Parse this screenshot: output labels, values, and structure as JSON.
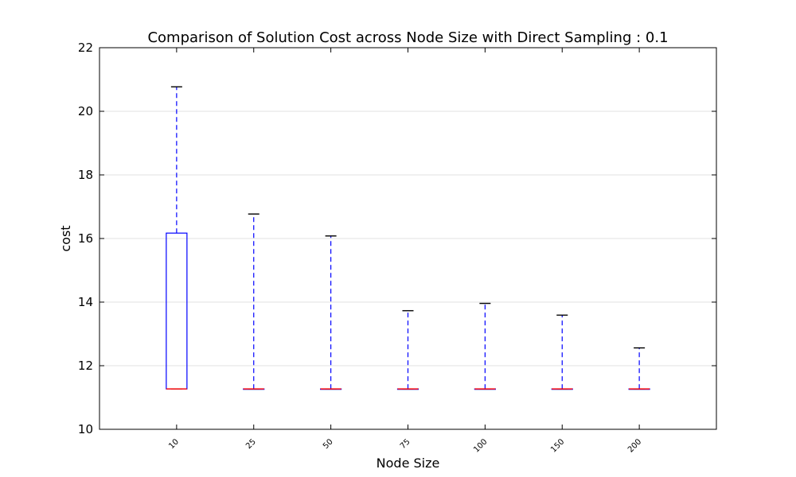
{
  "chart_data": {
    "type": "box",
    "title": "Comparison of Solution Cost across Node Size with Direct Sampling : 0.1",
    "xlabel": "Node Size",
    "ylabel": "cost",
    "ylim": [
      10,
      22
    ],
    "yticks": [
      "10",
      "12",
      "14",
      "16",
      "18",
      "20",
      "22"
    ],
    "grid": "horizontal",
    "categories": [
      "10",
      "25",
      "50",
      "75",
      "100",
      "150",
      "200"
    ],
    "boxes": [
      {
        "category": "10",
        "whislo": 11.27,
        "q1": 11.27,
        "median": 11.27,
        "q3": 16.17,
        "whishi": 20.77
      },
      {
        "category": "25",
        "whislo": 11.27,
        "q1": 11.27,
        "median": 11.27,
        "q3": 11.27,
        "whishi": 16.77
      },
      {
        "category": "50",
        "whislo": 11.27,
        "q1": 11.27,
        "median": 11.27,
        "q3": 11.27,
        "whishi": 16.08
      },
      {
        "category": "75",
        "whislo": 11.27,
        "q1": 11.27,
        "median": 11.27,
        "q3": 11.27,
        "whishi": 13.73
      },
      {
        "category": "100",
        "whislo": 11.27,
        "q1": 11.27,
        "median": 11.27,
        "q3": 11.27,
        "whishi": 13.96
      },
      {
        "category": "150",
        "whislo": 11.27,
        "q1": 11.27,
        "median": 11.27,
        "q3": 11.27,
        "whishi": 13.59
      },
      {
        "category": "200",
        "whislo": 11.27,
        "q1": 11.27,
        "median": 11.27,
        "q3": 11.27,
        "whishi": 12.56
      }
    ],
    "colors": {
      "box": "#0000ff",
      "whisker": "#0000ff",
      "cap": "#000000",
      "median": "#ff0000",
      "grid": "#e0e0e0"
    }
  }
}
